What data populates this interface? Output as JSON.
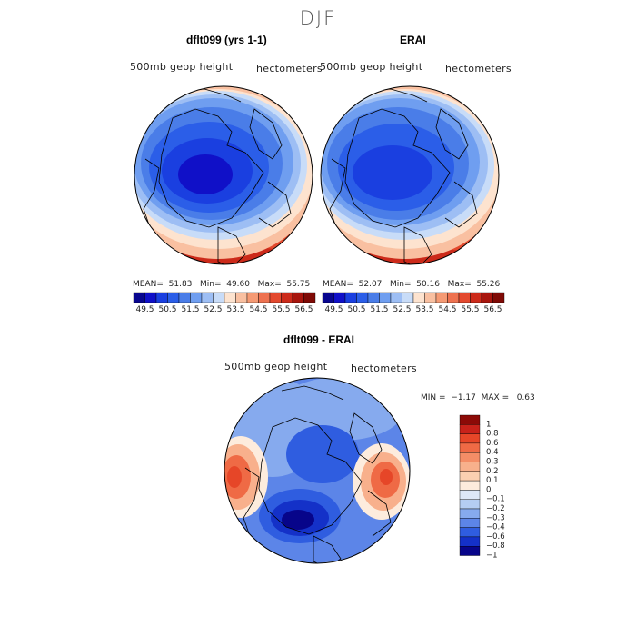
{
  "title": "DJF",
  "panels": [
    {
      "title": "dflt099 (yrs 1-1)",
      "variable": "500mb geop height",
      "units": "hectometers",
      "stats": {
        "mean_label": "MEAN=",
        "mean": "51.83",
        "min_label": "Min=",
        "min": "49.60",
        "max_label": "Max=",
        "max": "55.75"
      }
    },
    {
      "title": "ERAI",
      "variable": "500mb geop height",
      "units": "hectometers",
      "stats": {
        "mean_label": "MEAN=",
        "mean": "52.07",
        "min_label": "Min=",
        "min": "50.16",
        "max_label": "Max=",
        "max": "55.26"
      }
    },
    {
      "title": "dflt099 - ERAI",
      "variable": "500mb geop height",
      "units": "hectometers",
      "stats": {
        "min_label": "MIN =",
        "min": "−1.17",
        "max_label": "MAX =",
        "max": "0.63"
      }
    }
  ],
  "chart_data": [
    {
      "type": "heatmap",
      "title": "dflt099 (yrs 1-1)",
      "projection": "north polar stereographic",
      "variable": "500mb geop height",
      "units": "hectometers",
      "stats": {
        "mean": 51.83,
        "min": 49.6,
        "max": 55.75
      },
      "colorbar": {
        "orientation": "horizontal",
        "ticks": [
          "49.5",
          "50.5",
          "51.5",
          "52.5",
          "53.5",
          "54.5",
          "55.5",
          "56.5"
        ],
        "levels": [
          49.5,
          50,
          50.5,
          51,
          51.5,
          52,
          52.5,
          53,
          53.5,
          54,
          54.5,
          55,
          55.5,
          56,
          56.5
        ],
        "colors": [
          "#08068f",
          "#1010c8",
          "#1a3fe0",
          "#2b5ee8",
          "#4a7de8",
          "#6f9ef0",
          "#9dbef4",
          "#c8dcf8",
          "#fde3cf",
          "#f9c0a1",
          "#f59a74",
          "#ee7250",
          "#e3492e",
          "#cc2a1a",
          "#a8150d",
          "#7f0a06"
        ]
      }
    },
    {
      "type": "heatmap",
      "title": "ERAI",
      "projection": "north polar stereographic",
      "variable": "500mb geop height",
      "units": "hectometers",
      "stats": {
        "mean": 52.07,
        "min": 50.16,
        "max": 55.26
      },
      "colorbar": {
        "orientation": "horizontal",
        "ticks": [
          "49.5",
          "50.5",
          "51.5",
          "52.5",
          "53.5",
          "54.5",
          "55.5",
          "56.5"
        ],
        "levels": [
          49.5,
          50,
          50.5,
          51,
          51.5,
          52,
          52.5,
          53,
          53.5,
          54,
          54.5,
          55,
          55.5,
          56,
          56.5
        ],
        "colors": [
          "#08068f",
          "#1010c8",
          "#1a3fe0",
          "#2b5ee8",
          "#4a7de8",
          "#6f9ef0",
          "#9dbef4",
          "#c8dcf8",
          "#fde3cf",
          "#f9c0a1",
          "#f59a74",
          "#ee7250",
          "#e3492e",
          "#cc2a1a",
          "#a8150d",
          "#7f0a06"
        ]
      }
    },
    {
      "type": "heatmap",
      "title": "dflt099 - ERAI",
      "projection": "north polar stereographic",
      "variable": "500mb geop height",
      "units": "hectometers",
      "stats": {
        "min": -1.17,
        "max": 0.63
      },
      "colorbar": {
        "orientation": "vertical",
        "ticks": [
          "1",
          "0.8",
          "0.6",
          "0.4",
          "0.3",
          "0.2",
          "0.1",
          "0",
          "−0.1",
          "−0.2",
          "−0.3",
          "−0.4",
          "−0.6",
          "−0.8",
          "−1"
        ],
        "levels": [
          1,
          0.8,
          0.6,
          0.4,
          0.3,
          0.2,
          0.1,
          0,
          -0.1,
          -0.2,
          -0.3,
          -0.4,
          -0.6,
          -0.8,
          -1
        ],
        "colors": [
          "#8c0a07",
          "#c8221a",
          "#e64628",
          "#ef6a45",
          "#f48d66",
          "#f8b08c",
          "#fbcfb1",
          "#fdecdd",
          "#dde8f8",
          "#b4cdf3",
          "#86aaee",
          "#5c85e8",
          "#2f5de0",
          "#1431c8",
          "#07058a"
        ]
      }
    }
  ]
}
